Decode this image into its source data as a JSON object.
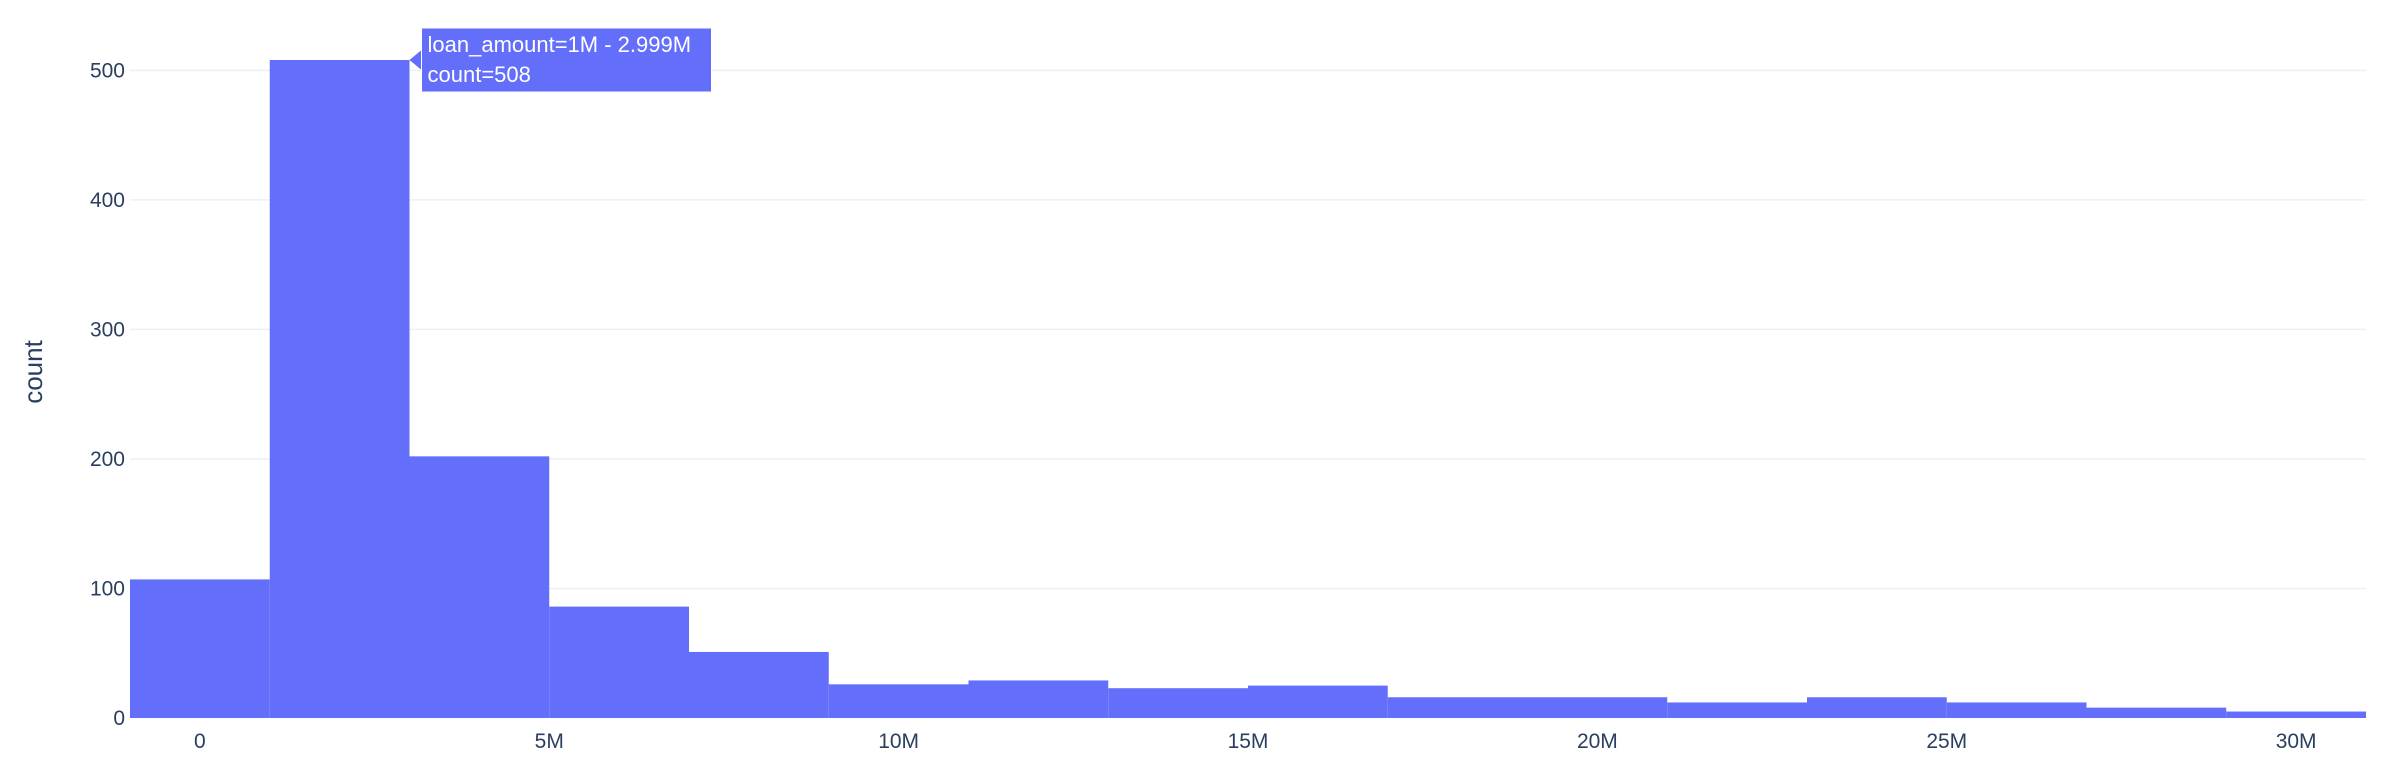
{
  "chart_data": {
    "type": "bar",
    "subtype": "histogram",
    "x_variable": "loan_amount",
    "ylabel": "count",
    "bar_color": "#636efa",
    "gridline_color": "#ebf0f8",
    "text_color": "#2a3f5f",
    "bins": [
      {
        "start": -1000000,
        "end": 1000000,
        "count": 107
      },
      {
        "start": 1000000,
        "end": 3000000,
        "count": 508
      },
      {
        "start": 3000000,
        "end": 5000000,
        "count": 202
      },
      {
        "start": 5000000,
        "end": 7000000,
        "count": 86
      },
      {
        "start": 7000000,
        "end": 9000000,
        "count": 51
      },
      {
        "start": 9000000,
        "end": 11000000,
        "count": 26
      },
      {
        "start": 11000000,
        "end": 13000000,
        "count": 29
      },
      {
        "start": 13000000,
        "end": 15000000,
        "count": 23
      },
      {
        "start": 15000000,
        "end": 17000000,
        "count": 25
      },
      {
        "start": 17000000,
        "end": 19000000,
        "count": 16
      },
      {
        "start": 19000000,
        "end": 21000000,
        "count": 16
      },
      {
        "start": 21000000,
        "end": 23000000,
        "count": 12
      },
      {
        "start": 23000000,
        "end": 25000000,
        "count": 16
      },
      {
        "start": 25000000,
        "end": 27000000,
        "count": 12
      },
      {
        "start": 27000000,
        "end": 29000000,
        "count": 8
      },
      {
        "start": 29000000,
        "end": 31000000,
        "count": 5
      }
    ],
    "xlim": [
      -1000000,
      31000000
    ],
    "ylim": [
      0,
      508
    ],
    "x_ticks": [
      {
        "value": 0,
        "label": "0"
      },
      {
        "value": 5000000,
        "label": "5M"
      },
      {
        "value": 10000000,
        "label": "10M"
      },
      {
        "value": 15000000,
        "label": "15M"
      },
      {
        "value": 20000000,
        "label": "20M"
      },
      {
        "value": 25000000,
        "label": "25M"
      },
      {
        "value": 30000000,
        "label": "30M"
      }
    ],
    "y_ticks": [
      {
        "value": 0,
        "label": "0"
      },
      {
        "value": 100,
        "label": "100"
      },
      {
        "value": 200,
        "label": "200"
      },
      {
        "value": 300,
        "label": "300"
      },
      {
        "value": 400,
        "label": "400"
      },
      {
        "value": 500,
        "label": "500"
      }
    ],
    "grid": true,
    "hover_tooltip": {
      "bin_index": 1,
      "line1": "loan_amount=1M - 2.999M",
      "line2": "count=508"
    }
  }
}
